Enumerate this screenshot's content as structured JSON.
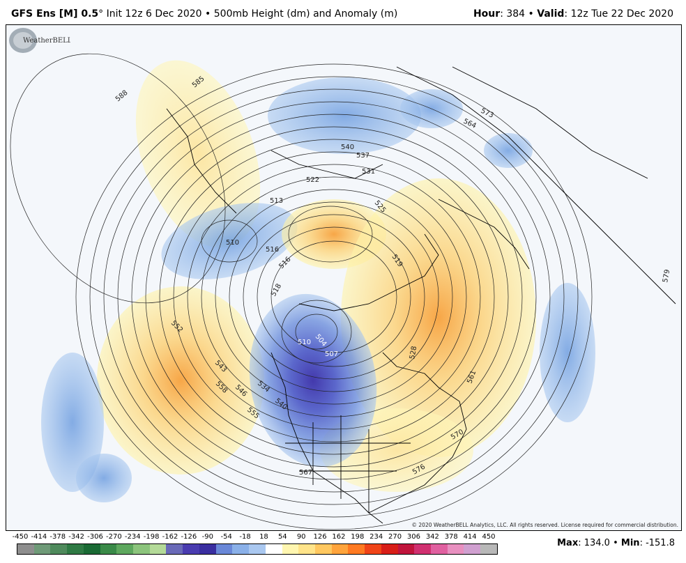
{
  "header": {
    "model": "GFS Ens [M] 0.5",
    "degree": "°",
    "init": "Init 12z 6 Dec 2020",
    "bullet": "•",
    "product": "500mb Height (dm) and Anomaly (m)",
    "hour_label": "Hour",
    "hour_value": "384",
    "valid_label": "Valid",
    "valid_value": "12z Tue 22 Dec 2020"
  },
  "map": {
    "contour_labels": [
      "588",
      "585",
      "573",
      "564",
      "540",
      "537",
      "531",
      "522",
      "513",
      "510",
      "516",
      "516",
      "525",
      "519",
      "518",
      "510",
      "507",
      "504",
      "528",
      "534",
      "540",
      "543",
      "546",
      "552",
      "555",
      "558",
      "561",
      "567",
      "570",
      "576",
      "579",
      "585"
    ],
    "copyright": "© 2020 WeatherBELL Analytics, LLC. All rights reserved. License required for commercial distribution.",
    "logo_text": "WeatherBELL"
  },
  "colorbar": {
    "ticks": [
      "-450",
      "-414",
      "-378",
      "-342",
      "-306",
      "-270",
      "-234",
      "-198",
      "-162",
      "-126",
      "-90",
      "-54",
      "-18",
      "18",
      "54",
      "90",
      "126",
      "162",
      "198",
      "234",
      "270",
      "306",
      "342",
      "378",
      "414",
      "450"
    ],
    "colors": [
      "#8e8e8e",
      "#6f9a78",
      "#4f8a5c",
      "#2f7a44",
      "#1a6a34",
      "#3a8a48",
      "#5ea85e",
      "#8cc47c",
      "#b4da98",
      "#6a6ab8",
      "#4a3cb0",
      "#3a2ea0",
      "#6a88d8",
      "#8ab0e8",
      "#aac8f0",
      "#ffffff",
      "#fff6b0",
      "#ffe48a",
      "#ffc860",
      "#ffa43c",
      "#ff7a22",
      "#f04418",
      "#d81e18",
      "#c0143c",
      "#d03070",
      "#e060a0",
      "#e890c0",
      "#d0a0d0",
      "#b8b8b8"
    ]
  },
  "stats": {
    "max_label": "Max",
    "max_value": "134.0",
    "min_label": "Min",
    "min_value": "-151.8"
  }
}
